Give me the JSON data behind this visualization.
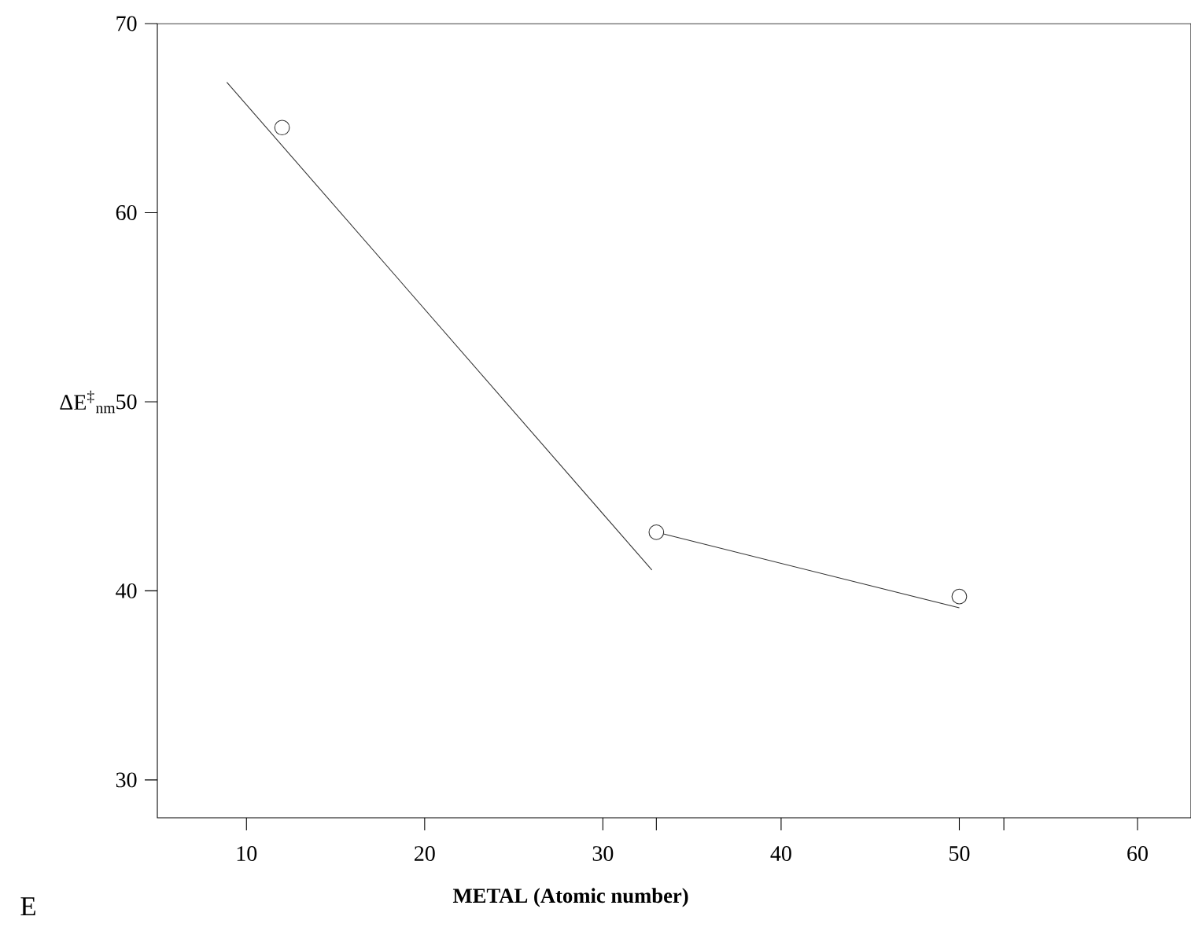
{
  "chart_data": {
    "type": "scatter",
    "xlabel": "METAL (Atomic number)",
    "ylabel": "ΔE$^{‡}$$_{nm}$",
    "annotations": [
      "E"
    ],
    "xlim": [
      5,
      63
    ],
    "ylim": [
      28,
      70
    ],
    "xticks": [
      10,
      20,
      30,
      {
        "value": 33,
        "label": null
      },
      40,
      50,
      {
        "value": 52.5,
        "label": null
      },
      60
    ],
    "yticks": [
      30,
      40,
      50,
      60,
      70
    ],
    "series": [
      {
        "type": "line",
        "color": "#333333",
        "marker": "none",
        "line_style": "solid",
        "x": [
          8.9,
          32.75
        ],
        "values": [
          66.9,
          41.1
        ]
      },
      {
        "type": "line",
        "color": "#333333",
        "marker": "none",
        "line_style": "solid",
        "x": [
          33,
          50
        ],
        "values": [
          43.1,
          39.1
        ]
      },
      {
        "color": "#333333",
        "marker": "circle",
        "x": [
          12,
          33,
          50
        ],
        "values": [
          64.5,
          43.1,
          39.7
        ]
      }
    ]
  }
}
